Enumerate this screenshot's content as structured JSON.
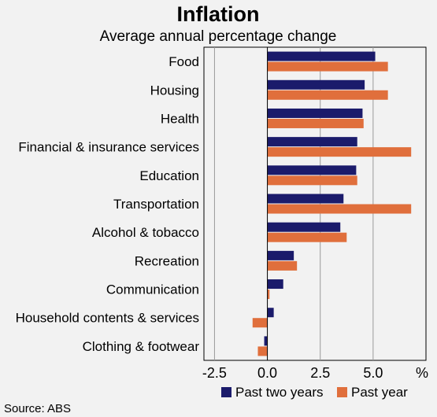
{
  "chart_data": {
    "type": "bar",
    "orientation": "horizontal",
    "title": "Inflation",
    "subtitle": "Average annual percentage change",
    "unit": "%",
    "source": "Source: ABS",
    "categories": [
      "Food",
      "Housing",
      "Health",
      "Financial & insurance services",
      "Education",
      "Transportation",
      "Alcohol & tobacco",
      "Recreation",
      "Communication",
      "Household contents & services",
      "Clothing & footwear"
    ],
    "series": [
      {
        "name": "Past two years",
        "color": "#1b1b6b",
        "values": [
          5.1,
          4.6,
          4.5,
          4.25,
          4.2,
          3.6,
          3.45,
          1.25,
          0.75,
          0.3,
          -0.15
        ]
      },
      {
        "name": "Past year",
        "color": "#e06f3c",
        "values": [
          5.7,
          5.7,
          4.55,
          6.8,
          4.25,
          6.8,
          3.75,
          1.4,
          0.1,
          -0.7,
          -0.45
        ]
      }
    ],
    "xlim": [
      -3.0,
      7.5
    ],
    "xticks": [
      -2.5,
      0.0,
      2.5,
      5.0
    ],
    "xtick_labels": [
      "-2.5",
      "0.0",
      "2.5",
      "5.0"
    ],
    "grid": true,
    "legend_position": "bottom"
  }
}
